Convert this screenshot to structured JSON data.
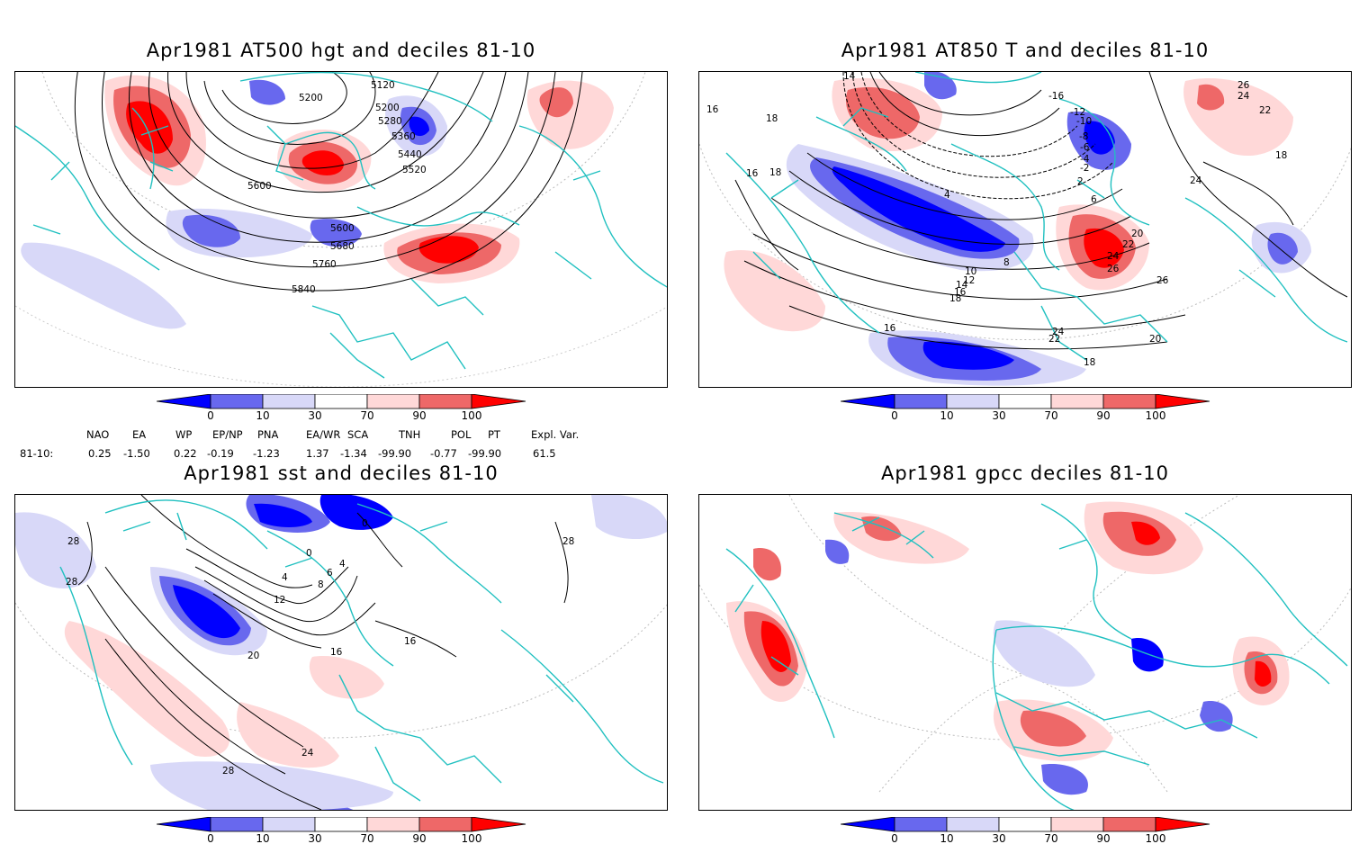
{
  "panels": [
    {
      "title": "Apr1981 AT500 hgt and deciles 81-10",
      "contour_labels": [
        "5120",
        "5200",
        "5200",
        "5280",
        "5360",
        "5440",
        "5520",
        "5600",
        "5600",
        "5680",
        "5760",
        "5840"
      ]
    },
    {
      "title": "Apr1981 AT850 T and deciles 81-10",
      "contour_labels": [
        "14",
        "-16",
        "-12",
        "-10",
        "-8",
        "-6",
        "-4",
        "-2",
        "2",
        "6",
        "4",
        "8",
        "10",
        "12",
        "14",
        "16",
        "18",
        "18",
        "18",
        "16",
        "20",
        "22",
        "24",
        "26",
        "22",
        "24",
        "26",
        "26",
        "24",
        "22",
        "18",
        "20",
        "16",
        "24",
        "16",
        "18"
      ]
    },
    {
      "title": "Apr1981 sst and deciles 81-10",
      "contour_labels": [
        "28",
        "28",
        "0",
        "0",
        "4",
        "4",
        "6",
        "8",
        "12",
        "16",
        "16",
        "20",
        "24",
        "28",
        "28"
      ]
    },
    {
      "title": "Apr1981 gpcc deciles 81-10",
      "contour_labels": []
    }
  ],
  "colorbar": {
    "ticks": [
      "0",
      "10",
      "30",
      "70",
      "90",
      "100"
    ],
    "colors": [
      "#0000ff",
      "#6868ee",
      "#d8d8f8",
      "#ffffff",
      "#ffd8d8",
      "#ee6868",
      "#ff0000"
    ]
  },
  "indices": {
    "headers": [
      "NAO",
      "EA",
      "WP",
      "EP/NP",
      "PNA",
      "EA/WR",
      "SCA",
      "TNH",
      "POL",
      "PT",
      "Expl. Var."
    ],
    "row_label": "81-10:",
    "values": [
      "0.25",
      "-1.50",
      "0.22",
      "-0.19",
      "-1.23",
      "1.37",
      "-1.34",
      "-99.90",
      "-0.77",
      "-99.90",
      "61.5"
    ]
  }
}
